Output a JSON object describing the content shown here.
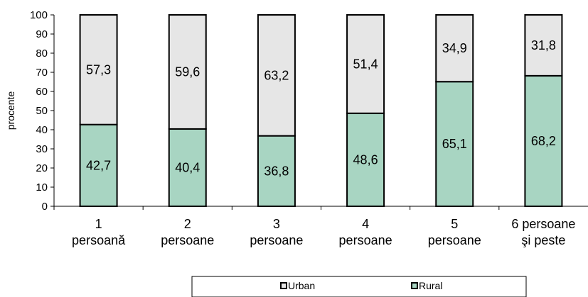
{
  "chart_data": {
    "type": "bar",
    "stacked": true,
    "percent": true,
    "categories": [
      [
        "1",
        "persoană"
      ],
      [
        "2",
        "persoane"
      ],
      [
        "3",
        "persoane"
      ],
      [
        "4",
        "persoane"
      ],
      [
        "5",
        "persoane"
      ],
      [
        "6 persoane",
        "şi peste"
      ]
    ],
    "series": [
      {
        "name": "Rural",
        "values": [
          42.7,
          40.4,
          36.8,
          48.6,
          65.1,
          68.2
        ],
        "labels": [
          "42,7",
          "40,4",
          "36,8",
          "48,6",
          "65,1",
          "68,2"
        ],
        "color": "#a8d5c2"
      },
      {
        "name": "Urban",
        "values": [
          57.3,
          59.6,
          63.2,
          51.4,
          34.9,
          31.8
        ],
        "labels": [
          "57,3",
          "59,6",
          "63,2",
          "51,4",
          "34,9",
          "31,8"
        ],
        "color": "#e6e6e6"
      }
    ],
    "ylabel": "procente",
    "xlabel": "",
    "ylim": [
      0,
      100
    ],
    "yticks": [
      0,
      10,
      20,
      30,
      40,
      50,
      60,
      70,
      80,
      90,
      100
    ],
    "grid": false,
    "legend": {
      "position": "bottom",
      "order": [
        "Urban",
        "Rural"
      ]
    }
  }
}
